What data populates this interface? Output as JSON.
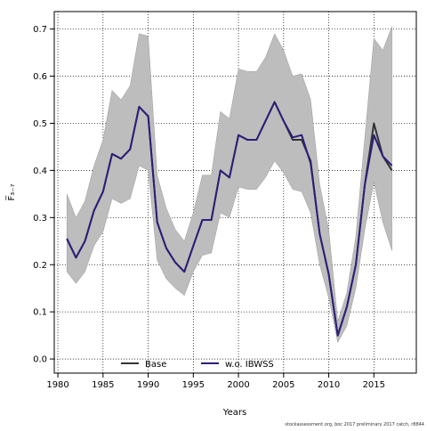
{
  "chart_data": {
    "type": "line",
    "xlabel": "Years",
    "ylabel": "F̅₃₋₇",
    "xlim": [
      1979.6,
      1983.4
    ],
    "x_range": [
      1979.6,
      2019.7
    ],
    "ylim": [
      -0.03,
      0.737
    ],
    "x_ticks": [
      1980,
      1985,
      1990,
      1995,
      2000,
      2005,
      2010,
      2015
    ],
    "x_tick_labels": [
      "1980",
      "1985",
      "1990",
      "1995",
      "2000",
      "2005",
      "2010",
      "2015"
    ],
    "y_ticks": [
      0.0,
      0.1,
      0.2,
      0.3,
      0.4,
      0.5,
      0.6,
      0.7
    ],
    "y_tick_labels": [
      "0.0",
      "0.1",
      "0.2",
      "0.3",
      "0.4",
      "0.5",
      "0.6",
      "0.7"
    ],
    "grid": true,
    "legend_position": "bottom",
    "x": [
      1981,
      1982,
      1983,
      1984,
      1985,
      1986,
      1987,
      1988,
      1989,
      1990,
      1991,
      1992,
      1993,
      1994,
      1995,
      1996,
      1997,
      1998,
      1999,
      2000,
      2001,
      2002,
      2003,
      2004,
      2005,
      2006,
      2007,
      2008,
      2009,
      2010,
      2011,
      2012,
      2013,
      2014,
      2015,
      2016,
      2017
    ],
    "band": {
      "upper": [
        0.35,
        0.3,
        0.335,
        0.41,
        0.465,
        0.57,
        0.55,
        0.58,
        0.69,
        0.685,
        0.39,
        0.32,
        0.275,
        0.25,
        0.31,
        0.39,
        0.39,
        0.525,
        0.51,
        0.615,
        0.61,
        0.61,
        0.64,
        0.69,
        0.655,
        0.6,
        0.605,
        0.55,
        0.37,
        0.275,
        0.08,
        0.14,
        0.26,
        0.47,
        0.68,
        0.655,
        0.705
      ],
      "lower": [
        0.185,
        0.16,
        0.185,
        0.24,
        0.27,
        0.34,
        0.33,
        0.34,
        0.41,
        0.4,
        0.21,
        0.17,
        0.15,
        0.135,
        0.185,
        0.22,
        0.225,
        0.31,
        0.3,
        0.365,
        0.36,
        0.36,
        0.385,
        0.42,
        0.395,
        0.36,
        0.355,
        0.31,
        0.2,
        0.13,
        0.035,
        0.07,
        0.15,
        0.275,
        0.375,
        0.29,
        0.23
      ],
      "color": "#bdbdbd"
    },
    "series": [
      {
        "name": "Base",
        "color": "#333333",
        "values": [
          0.255,
          0.215,
          0.25,
          0.315,
          0.355,
          0.435,
          0.425,
          0.445,
          0.535,
          0.515,
          0.29,
          0.235,
          0.205,
          0.185,
          0.24,
          0.295,
          0.295,
          0.4,
          0.385,
          0.475,
          0.465,
          0.465,
          0.505,
          0.545,
          0.505,
          0.465,
          0.465,
          0.42,
          0.265,
          0.18,
          0.05,
          0.11,
          0.2,
          0.37,
          0.5,
          0.43,
          0.4
        ]
      },
      {
        "name": "w.o. IBWSS",
        "color": "#2b1f7a",
        "values": [
          0.255,
          0.215,
          0.25,
          0.315,
          0.355,
          0.435,
          0.425,
          0.445,
          0.535,
          0.515,
          0.29,
          0.235,
          0.205,
          0.185,
          0.24,
          0.295,
          0.295,
          0.4,
          0.385,
          0.475,
          0.465,
          0.465,
          0.505,
          0.545,
          0.505,
          0.47,
          0.475,
          0.415,
          0.265,
          0.18,
          0.05,
          0.11,
          0.2,
          0.37,
          0.475,
          0.43,
          0.41
        ]
      }
    ]
  },
  "footer": "stockassessment.org, boc 2017 preliminary 2017 catch, r8844"
}
